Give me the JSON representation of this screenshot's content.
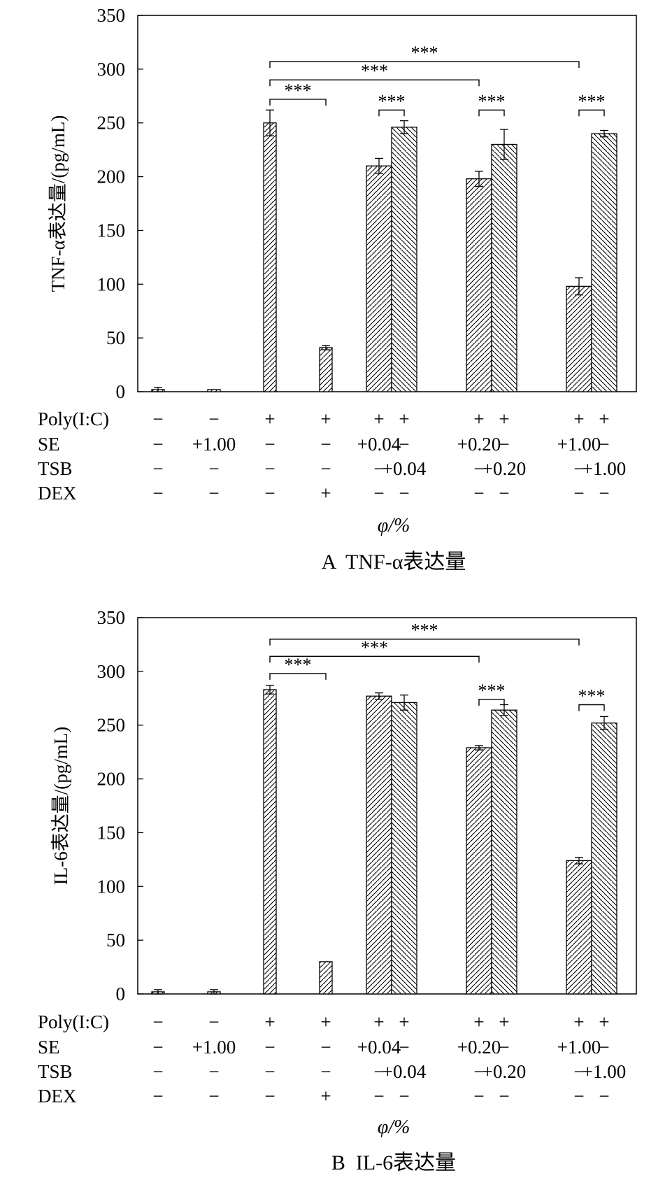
{
  "chart_data": [
    {
      "type": "bar",
      "title": "A  TNF-α表达量",
      "ylabel": "TNF-α表达量/(pg/mL)",
      "xlabel": "φ/%",
      "ylim": [
        0,
        350
      ],
      "yticks": [
        0,
        50,
        100,
        150,
        200,
        250,
        300,
        350
      ],
      "grid": false,
      "treatment_rows": [
        "Poly(I:C)",
        "SE",
        "TSB",
        "DEX"
      ],
      "groups": [
        {
          "bars": [
            {
              "pattern": "diag-right",
              "value": 2,
              "err": 2,
              "labels": [
                "−",
                "−",
                "−",
                "−"
              ]
            }
          ]
        },
        {
          "bars": [
            {
              "pattern": "diag-right",
              "value": 2,
              "err": 0,
              "labels": [
                "−",
                "+1.00",
                "−",
                "−"
              ]
            }
          ]
        },
        {
          "bars": [
            {
              "pattern": "diag-right",
              "value": 250,
              "err": 12,
              "labels": [
                "+",
                "−",
                "−",
                "−"
              ]
            }
          ]
        },
        {
          "bars": [
            {
              "pattern": "diag-right",
              "value": 41,
              "err": 2,
              "labels": [
                "+",
                "−",
                "−",
                "+"
              ]
            }
          ]
        },
        {
          "bars": [
            {
              "pattern": "diag-right",
              "value": 210,
              "err": 7,
              "labels": [
                "+",
                "+0.04",
                "−",
                "−"
              ]
            },
            {
              "pattern": "diag-left",
              "value": 246,
              "err": 6,
              "labels": [
                "+",
                "−",
                "+0.04",
                "−"
              ]
            }
          ]
        },
        {
          "bars": [
            {
              "pattern": "diag-right",
              "value": 198,
              "err": 7,
              "labels": [
                "+",
                "+0.20",
                "−",
                "−"
              ]
            },
            {
              "pattern": "diag-left",
              "value": 230,
              "err": 14,
              "labels": [
                "+",
                "−",
                "+0.20",
                "−"
              ]
            }
          ]
        },
        {
          "bars": [
            {
              "pattern": "diag-right",
              "value": 98,
              "err": 8,
              "labels": [
                "+",
                "+1.00",
                "−",
                "−"
              ]
            },
            {
              "pattern": "diag-left",
              "value": 240,
              "err": 3,
              "labels": [
                "+",
                "−",
                "+1.00",
                "−"
              ]
            }
          ]
        }
      ],
      "significance": [
        {
          "from": [
            2,
            0
          ],
          "to": [
            3,
            0
          ],
          "label": "***",
          "level": 272
        },
        {
          "from": [
            2,
            0
          ],
          "to": [
            5,
            0
          ],
          "label": "***",
          "level": 290
        },
        {
          "from": [
            2,
            0
          ],
          "to": [
            6,
            0
          ],
          "label": "***",
          "level": 307
        },
        {
          "from": [
            4,
            0
          ],
          "to": [
            4,
            1
          ],
          "label": "***",
          "level": 262
        },
        {
          "from": [
            5,
            0
          ],
          "to": [
            5,
            1
          ],
          "label": "***",
          "level": 262
        },
        {
          "from": [
            6,
            0
          ],
          "to": [
            6,
            1
          ],
          "label": "***",
          "level": 262
        }
      ]
    },
    {
      "type": "bar",
      "title": "B  IL-6表达量",
      "ylabel": "IL-6表达量/(pg/mL)",
      "xlabel": "φ/%",
      "ylim": [
        0,
        350
      ],
      "yticks": [
        0,
        50,
        100,
        150,
        200,
        250,
        300,
        350
      ],
      "grid": false,
      "treatment_rows": [
        "Poly(I:C)",
        "SE",
        "TSB",
        "DEX"
      ],
      "groups": [
        {
          "bars": [
            {
              "pattern": "diag-right",
              "value": 2,
              "err": 2,
              "labels": [
                "−",
                "−",
                "−",
                "−"
              ]
            }
          ]
        },
        {
          "bars": [
            {
              "pattern": "diag-right",
              "value": 2,
              "err": 2,
              "labels": [
                "−",
                "+1.00",
                "−",
                "−"
              ]
            }
          ]
        },
        {
          "bars": [
            {
              "pattern": "diag-right",
              "value": 283,
              "err": 4,
              "labels": [
                "+",
                "−",
                "−",
                "−"
              ]
            }
          ]
        },
        {
          "bars": [
            {
              "pattern": "diag-right",
              "value": 30,
              "err": 0,
              "labels": [
                "+",
                "−",
                "−",
                "+"
              ]
            }
          ]
        },
        {
          "bars": [
            {
              "pattern": "diag-right",
              "value": 277,
              "err": 3,
              "labels": [
                "+",
                "+0.04",
                "−",
                "−"
              ]
            },
            {
              "pattern": "diag-left",
              "value": 271,
              "err": 7,
              "labels": [
                "+",
                "−",
                "+0.04",
                "−"
              ]
            }
          ]
        },
        {
          "bars": [
            {
              "pattern": "diag-right",
              "value": 229,
              "err": 2,
              "labels": [
                "+",
                "+0.20",
                "−",
                "−"
              ]
            },
            {
              "pattern": "diag-left",
              "value": 264,
              "err": 5,
              "labels": [
                "+",
                "−",
                "+0.20",
                "−"
              ]
            }
          ]
        },
        {
          "bars": [
            {
              "pattern": "diag-right",
              "value": 124,
              "err": 3,
              "labels": [
                "+",
                "+1.00",
                "−",
                "−"
              ]
            },
            {
              "pattern": "diag-left",
              "value": 252,
              "err": 6,
              "labels": [
                "+",
                "−",
                "+1.00",
                "−"
              ]
            }
          ]
        }
      ],
      "significance": [
        {
          "from": [
            2,
            0
          ],
          "to": [
            3,
            0
          ],
          "label": "***",
          "level": 298
        },
        {
          "from": [
            2,
            0
          ],
          "to": [
            5,
            0
          ],
          "label": "***",
          "level": 314
        },
        {
          "from": [
            2,
            0
          ],
          "to": [
            6,
            0
          ],
          "label": "***",
          "level": 330
        },
        {
          "from": [
            5,
            0
          ],
          "to": [
            5,
            1
          ],
          "label": "***",
          "level": 274
        },
        {
          "from": [
            6,
            0
          ],
          "to": [
            6,
            1
          ],
          "label": "***",
          "level": 269
        }
      ]
    }
  ]
}
